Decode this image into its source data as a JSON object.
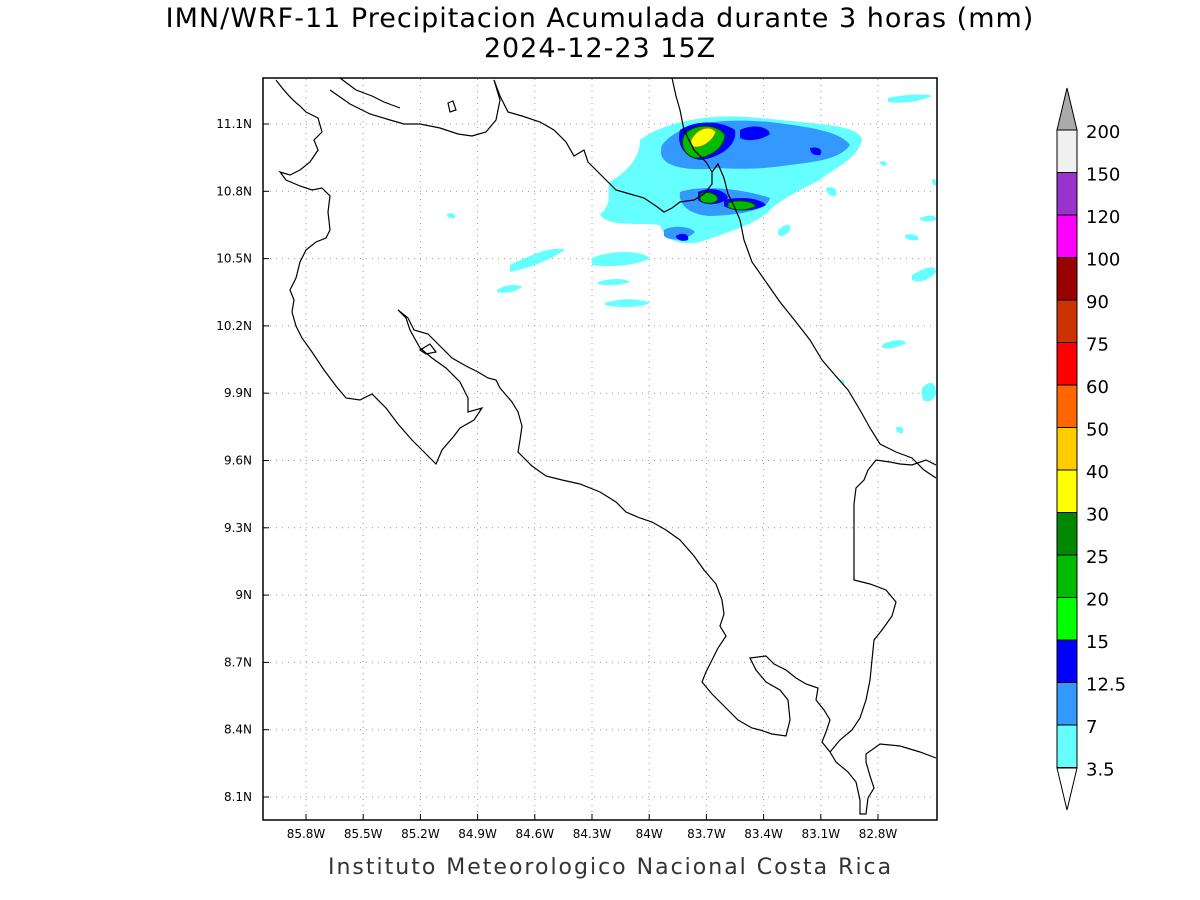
{
  "title": {
    "line1": "IMN/WRF-11 Precipitacion Acumulada durante 3 horas (mm)",
    "line2": "2024-12-23 15Z"
  },
  "footer": "Instituto Meteorologico Nacional Costa Rica",
  "axes": {
    "longitude_ticks": [
      "85.8W",
      "85.5W",
      "85.2W",
      "84.9W",
      "84.6W",
      "84.3W",
      "84W",
      "83.7W",
      "83.4W",
      "83.1W",
      "82.8W"
    ],
    "latitude_ticks": [
      "11.1N",
      "10.8N",
      "10.5N",
      "10.2N",
      "9.9N",
      "9.6N",
      "9.3N",
      "9N",
      "8.7N",
      "8.4N",
      "8.1N"
    ],
    "grid": "dotted"
  },
  "colorbar": {
    "labels": [
      "200",
      "150",
      "120",
      "100",
      "90",
      "75",
      "60",
      "50",
      "40",
      "30",
      "25",
      "20",
      "15",
      "12.5",
      "7",
      "3.5"
    ],
    "colors": [
      "#ffffff",
      "#f0f0f0",
      "#9933cc",
      "#ff00ff",
      "#990000",
      "#cc3300",
      "#ff0000",
      "#ff6600",
      "#ffcc00",
      "#ffff00",
      "#008800",
      "#00bb00",
      "#00ff00",
      "#0000ff",
      "#3399ff",
      "#66ffff"
    ],
    "top_arrow_color": "#aaaaaa",
    "bottom_arrow_color": "#ffffff"
  },
  "colors": {
    "coastline": "#000000",
    "background": "#ffffff"
  }
}
